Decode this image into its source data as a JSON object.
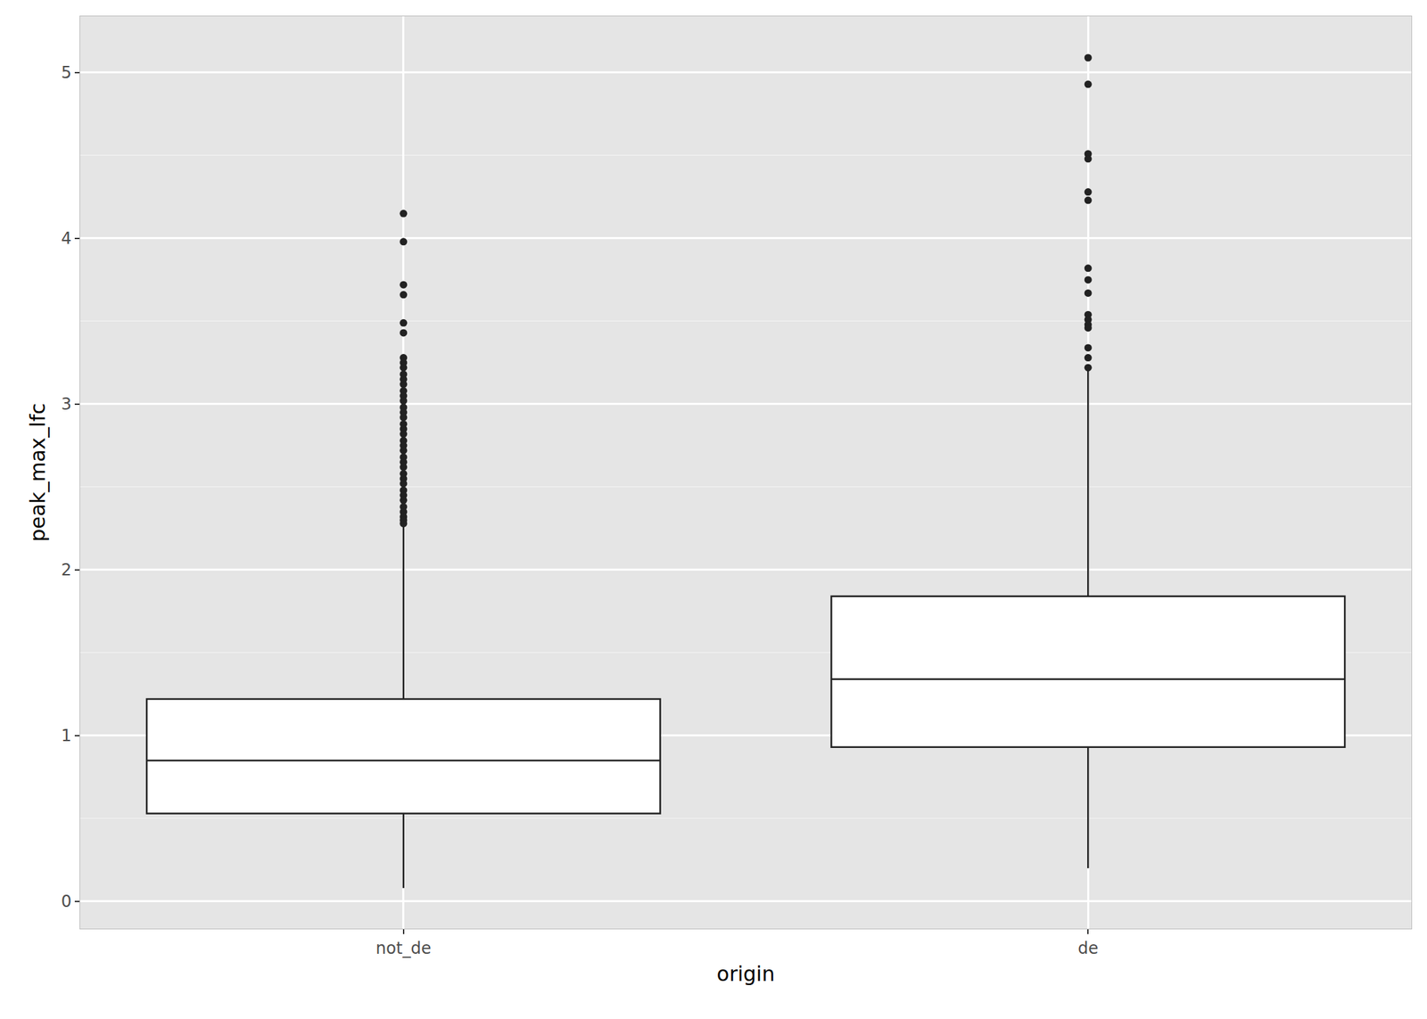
{
  "chart_data": {
    "type": "box",
    "x_label": "origin",
    "y_label": "peak_max_lfc",
    "categories": [
      "not_de",
      "de"
    ],
    "q1": [
      0.53,
      0.93
    ],
    "median": [
      0.85,
      1.34
    ],
    "q3": [
      1.22,
      1.84
    ],
    "whisker_low": [
      0.08,
      0.2
    ],
    "whisker_high": [
      2.27,
      3.2
    ],
    "outliers": [
      [
        4.15,
        3.98,
        3.72,
        3.66,
        3.49,
        3.43,
        3.28,
        3.25,
        3.22,
        3.18,
        3.15,
        3.12,
        3.08,
        3.05,
        3.02,
        2.98,
        2.95,
        2.92,
        2.88,
        2.85,
        2.82,
        2.78,
        2.75,
        2.72,
        2.68,
        2.65,
        2.62,
        2.58,
        2.55,
        2.52,
        2.48,
        2.45,
        2.42,
        2.38,
        2.35,
        2.32,
        2.3,
        2.28
      ],
      [
        5.09,
        4.93,
        4.51,
        4.48,
        4.28,
        4.23,
        3.82,
        3.75,
        3.67,
        3.54,
        3.51,
        3.48,
        3.46,
        3.34,
        3.28,
        3.22
      ]
    ],
    "color": "#ffffff",
    "ylim": [
      -0.165,
      5.34
    ],
    "yticks": [
      0,
      1,
      2,
      3,
      4,
      5
    ],
    "grid": true
  }
}
